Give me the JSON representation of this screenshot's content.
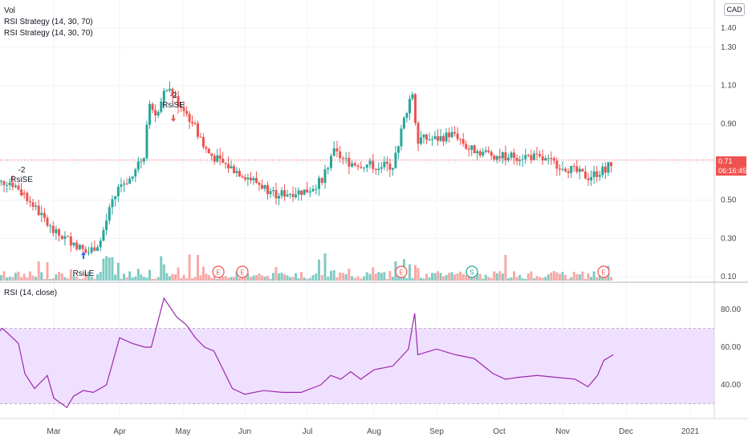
{
  "header": {
    "volume_label": "Vol",
    "strategy_label_1": "RSI Strategy (14, 30, 70)",
    "strategy_label_2": "RSI Strategy (14, 30, 70)",
    "currency_button": "CAD"
  },
  "rsi_panel": {
    "label": "RSI (14, close)"
  },
  "last_price": {
    "value": "0.71",
    "countdown": "06:16:45"
  },
  "colors": {
    "up": "#26a69a",
    "down": "#ef5350",
    "vol_up": "#80cbc4",
    "vol_down": "#f7a9a7",
    "rsi_line": "#9c27b0",
    "rsi_band": "#f0e0ff",
    "price_line": "#ef5350"
  },
  "chart_data": [
    {
      "type": "candlestick",
      "price_axis": {
        "ticks": [
          0.1,
          0.3,
          0.5,
          0.7,
          0.9,
          1.1,
          1.3,
          1.4
        ],
        "tick_labels": [
          "0.10",
          "0.30",
          "0.50",
          "0.70",
          "0.90",
          "1.10",
          "1.30",
          "1.40"
        ]
      },
      "time_axis": {
        "labels": [
          "Mar",
          "Apr",
          "May",
          "Jun",
          "Jul",
          "Aug",
          "Sep",
          "Oct",
          "Nov",
          "Dec",
          "2021"
        ]
      },
      "signals": [
        {
          "label": "-2",
          "sublabel": "RsiSE",
          "direction": "down",
          "period": "late Feb"
        },
        {
          "label": "",
          "sublabel": "RsiLE",
          "direction": "up",
          "period": "late Mar"
        },
        {
          "label": "-2",
          "sublabel": "RsiSE",
          "direction": "down",
          "period": "late Apr"
        }
      ],
      "event_markers": [
        "E",
        "E",
        "E",
        "E",
        "S",
        "E"
      ],
      "close_path": [
        {
          "t": 0.0,
          "p": 0.58
        },
        {
          "t": 0.3,
          "p": 0.6
        },
        {
          "t": 0.5,
          "p": 0.55
        },
        {
          "t": 0.8,
          "p": 0.42
        },
        {
          "t": 1.0,
          "p": 0.33
        },
        {
          "t": 1.3,
          "p": 0.28
        },
        {
          "t": 1.5,
          "p": 0.22
        },
        {
          "t": 1.7,
          "p": 0.28
        },
        {
          "t": 1.85,
          "p": 0.45
        },
        {
          "t": 2.0,
          "p": 0.58
        },
        {
          "t": 2.2,
          "p": 0.62
        },
        {
          "t": 2.4,
          "p": 0.75
        },
        {
          "t": 2.45,
          "p": 1.0
        },
        {
          "t": 2.6,
          "p": 0.95
        },
        {
          "t": 2.75,
          "p": 1.1
        },
        {
          "t": 2.9,
          "p": 1.02
        },
        {
          "t": 3.0,
          "p": 0.98
        },
        {
          "t": 3.2,
          "p": 0.88
        },
        {
          "t": 3.4,
          "p": 0.75
        },
        {
          "t": 3.6,
          "p": 0.7
        },
        {
          "t": 4.0,
          "p": 0.63
        },
        {
          "t": 4.5,
          "p": 0.53
        },
        {
          "t": 5.0,
          "p": 0.55
        },
        {
          "t": 5.2,
          "p": 0.6
        },
        {
          "t": 5.4,
          "p": 0.75
        },
        {
          "t": 5.6,
          "p": 0.7
        },
        {
          "t": 6.0,
          "p": 0.68
        },
        {
          "t": 6.3,
          "p": 0.68
        },
        {
          "t": 6.6,
          "p": 1.08
        },
        {
          "t": 6.7,
          "p": 0.82
        },
        {
          "t": 7.0,
          "p": 0.82
        },
        {
          "t": 7.3,
          "p": 0.85
        },
        {
          "t": 7.5,
          "p": 0.77
        },
        {
          "t": 8.0,
          "p": 0.73
        },
        {
          "t": 8.5,
          "p": 0.73
        },
        {
          "t": 9.0,
          "p": 0.68
        },
        {
          "t": 9.4,
          "p": 0.62
        },
        {
          "t": 9.65,
          "p": 0.66
        },
        {
          "t": 9.8,
          "p": 0.71
        }
      ]
    },
    {
      "type": "line",
      "name": "RSI (14, close)",
      "y_axis": {
        "ticks": [
          40,
          60,
          80
        ],
        "tick_labels": [
          "40.00",
          "60.00",
          "80.00"
        ],
        "band": [
          30,
          70
        ]
      },
      "x": [
        0.0,
        0.2,
        0.45,
        0.55,
        0.7,
        0.9,
        1.0,
        1.2,
        1.3,
        1.45,
        1.6,
        1.8,
        2.0,
        2.2,
        2.4,
        2.5,
        2.7,
        2.9,
        3.05,
        3.2,
        3.35,
        3.5,
        3.8,
        4.0,
        4.3,
        4.6,
        4.9,
        5.2,
        5.35,
        5.5,
        5.65,
        5.8,
        6.0,
        6.3,
        6.55,
        6.65,
        6.7,
        7.0,
        7.3,
        7.6,
        7.9,
        8.1,
        8.3,
        8.6,
        8.9,
        9.2,
        9.4,
        9.55,
        9.65,
        9.8
      ],
      "values": [
        63,
        70,
        62,
        46,
        38,
        45,
        33,
        28,
        34,
        37,
        36,
        40,
        65,
        62,
        60,
        60,
        86,
        76,
        72,
        65,
        60,
        58,
        38,
        35,
        37,
        36,
        36,
        40,
        45,
        43,
        47,
        43,
        48,
        50,
        59,
        78,
        56,
        59,
        56,
        54,
        46,
        43,
        44,
        45,
        44,
        43,
        39,
        45,
        53,
        56
      ]
    }
  ]
}
